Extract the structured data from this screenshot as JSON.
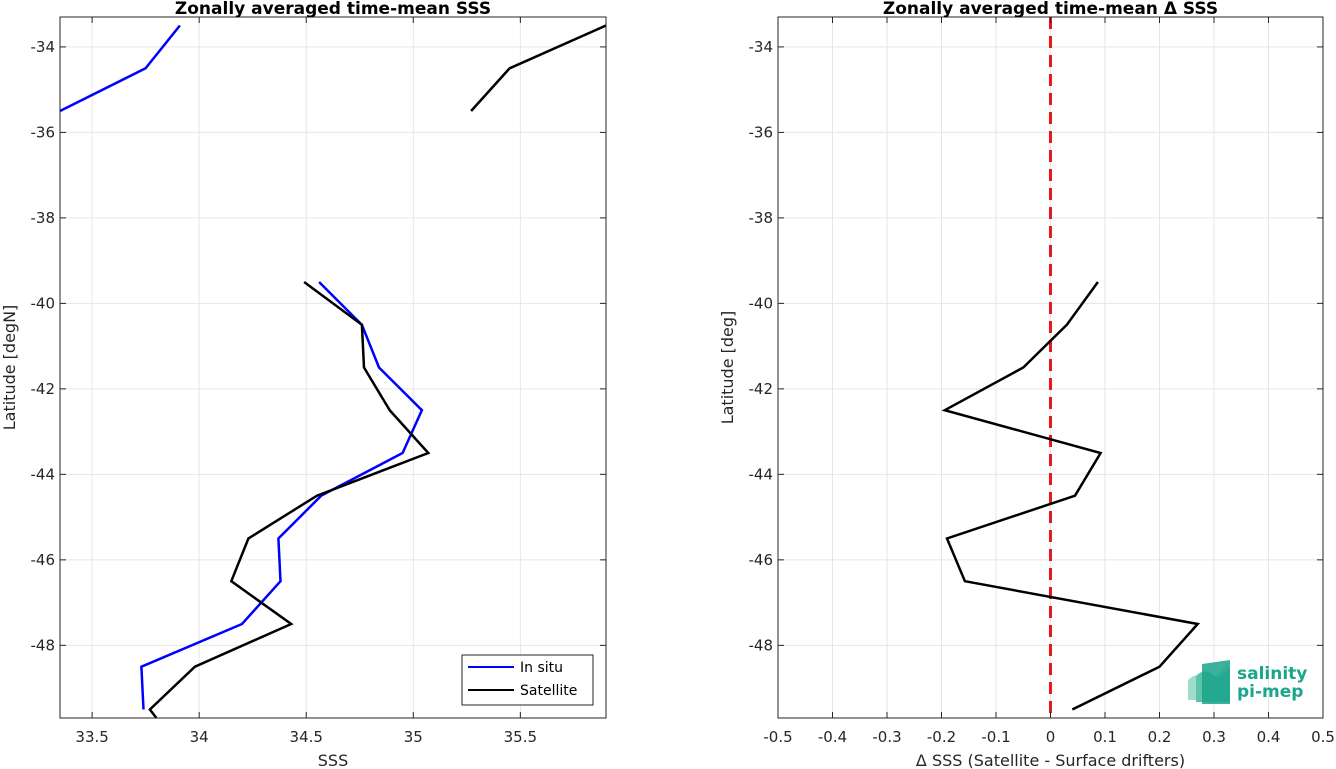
{
  "logo": {
    "line1": "salinity",
    "line2": "pi-mep"
  },
  "colors": {
    "insitu": "#0000ff",
    "satellite": "#000000",
    "zero_line": "#e41a1c",
    "grid": "#e6e6e6",
    "logo": "#1aa58c"
  },
  "chart_data": [
    {
      "type": "line",
      "title": "Zonally averaged time-mean SSS",
      "xlabel": "SSS",
      "ylabel": "Latitude [degN]",
      "xlim": [
        33.35,
        35.9
      ],
      "ylim": [
        -49.7,
        -33.3
      ],
      "xticks": [
        33.5,
        34,
        34.5,
        35,
        35.5
      ],
      "xticklabels": [
        "33.5",
        "34",
        "34.5",
        "35",
        "35.5"
      ],
      "yticks": [
        -48,
        -46,
        -44,
        -42,
        -40,
        -38,
        -36,
        -34
      ],
      "yticklabels": [
        "-48",
        "-46",
        "-44",
        "-42",
        "-40",
        "-38",
        "-36",
        "-34"
      ],
      "grid": true,
      "legend": {
        "position": "bottom-right",
        "entries": [
          "In situ",
          "Satellite"
        ]
      },
      "series": [
        {
          "name": "In situ",
          "segments": [
            [
              [
                33.35,
                -35.5
              ],
              [
                33.75,
                -34.5
              ],
              [
                33.91,
                -33.5
              ]
            ],
            [
              [
                34.56,
                -39.5
              ],
              [
                34.76,
                -40.5
              ],
              [
                34.84,
                -41.5
              ],
              [
                35.04,
                -42.5
              ],
              [
                34.95,
                -43.5
              ],
              [
                34.57,
                -44.5
              ],
              [
                34.37,
                -45.5
              ],
              [
                34.38,
                -46.5
              ],
              [
                34.2,
                -47.5
              ],
              [
                33.73,
                -48.5
              ],
              [
                33.74,
                -49.5
              ]
            ]
          ]
        },
        {
          "name": "Satellite",
          "segments": [
            [
              [
                35.27,
                -35.5
              ],
              [
                35.45,
                -34.5
              ],
              [
                35.9,
                -33.5
              ]
            ],
            [
              [
                34.49,
                -39.5
              ],
              [
                34.76,
                -40.5
              ],
              [
                34.77,
                -41.5
              ],
              [
                34.89,
                -42.5
              ],
              [
                35.07,
                -43.5
              ],
              [
                34.55,
                -44.5
              ],
              [
                34.23,
                -45.5
              ],
              [
                34.15,
                -46.5
              ],
              [
                34.43,
                -47.5
              ],
              [
                33.98,
                -48.5
              ],
              [
                33.77,
                -49.5
              ],
              [
                33.8,
                -49.7
              ]
            ]
          ]
        }
      ]
    },
    {
      "type": "line",
      "title": "Zonally averaged time-mean Δ SSS",
      "xlabel": "Δ SSS (Satellite - Surface drifters)",
      "ylabel": "Latitude [deg]",
      "xlim": [
        -0.5,
        0.5
      ],
      "ylim": [
        -49.7,
        -33.3
      ],
      "xticks": [
        -0.5,
        -0.4,
        -0.3,
        -0.2,
        -0.1,
        0,
        0.1,
        0.2,
        0.3,
        0.4,
        0.5
      ],
      "xticklabels": [
        "-0.5",
        "-0.4",
        "-0.3",
        "-0.2",
        "-0.1",
        "0",
        "0.1",
        "0.2",
        "0.3",
        "0.4",
        "0.5"
      ],
      "yticks": [
        -48,
        -46,
        -44,
        -42,
        -40,
        -38,
        -36,
        -34
      ],
      "yticklabels": [
        "-48",
        "-46",
        "-44",
        "-42",
        "-40",
        "-38",
        "-36",
        "-34"
      ],
      "grid": true,
      "reference_line": {
        "x": 0,
        "style": "dashed"
      },
      "series": [
        {
          "name": "",
          "segments": [
            [
              [
                0.087,
                -39.5
              ],
              [
                0.03,
                -40.5
              ],
              [
                -0.05,
                -41.5
              ],
              [
                -0.194,
                -42.5
              ],
              [
                0.092,
                -43.5
              ],
              [
                0.045,
                -44.5
              ],
              [
                -0.19,
                -45.5
              ],
              [
                -0.157,
                -46.5
              ],
              [
                0.27,
                -47.5
              ],
              [
                0.2,
                -48.5
              ],
              [
                0.04,
                -49.5
              ]
            ]
          ]
        }
      ]
    }
  ]
}
